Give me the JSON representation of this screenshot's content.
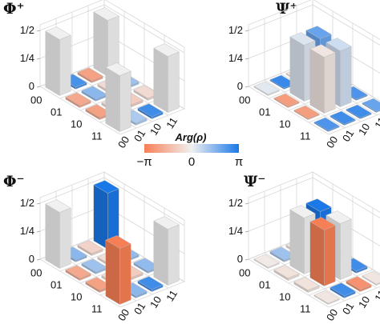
{
  "chart_data": [
    {
      "type": "bar3d",
      "title": "Φ⁺",
      "row_labels": [
        "00",
        "01",
        "10",
        "11"
      ],
      "col_labels": [
        "00",
        "01",
        "10",
        "11"
      ],
      "z_ticks": [
        "0",
        "1/4",
        "1/2"
      ],
      "zlim": [
        0,
        0.55
      ],
      "magnitude": [
        [
          0.5,
          0.02,
          0.02,
          0.5
        ],
        [
          0.02,
          0.02,
          0.02,
          0.02
        ],
        [
          0.02,
          0.02,
          0.02,
          0.02
        ],
        [
          0.5,
          0.02,
          0.02,
          0.5
        ]
      ],
      "phase": [
        [
          0,
          2.5,
          -2.2,
          0
        ],
        [
          -2.0,
          1.5,
          -0.6,
          1.2
        ],
        [
          -2.2,
          -0.6,
          -1.0,
          -0.6
        ],
        [
          0,
          1.0,
          2.6,
          0
        ]
      ]
    },
    {
      "type": "bar3d",
      "title": "Ψ⁺",
      "row_labels": [
        "00",
        "01",
        "10",
        "11"
      ],
      "col_labels": [
        "00",
        "01",
        "10",
        "11"
      ],
      "z_ticks": [
        "0",
        "1/4",
        "1/2"
      ],
      "zlim": [
        0,
        0.55
      ],
      "magnitude": [
        [
          0.01,
          0.01,
          0.01,
          0.01
        ],
        [
          0.01,
          0.5,
          0.5,
          0.01
        ],
        [
          0.01,
          0.5,
          0.5,
          0.01
        ],
        [
          0.01,
          0.01,
          0.01,
          0.01
        ]
      ],
      "phase": [
        [
          0.2,
          2.7,
          -0.4,
          -0.4
        ],
        [
          -2.3,
          0.3,
          2.0,
          -0.6
        ],
        [
          -2.3,
          -0.3,
          0.5,
          2.4
        ],
        [
          2.4,
          2.6,
          2.6,
          2.0
        ]
      ]
    },
    {
      "type": "bar3d",
      "title": "Φ⁻",
      "row_labels": [
        "00",
        "01",
        "10",
        "11"
      ],
      "col_labels": [
        "00",
        "01",
        "10",
        "11"
      ],
      "z_ticks": [
        "0",
        "1/4",
        "1/2"
      ],
      "zlim": [
        0,
        0.55
      ],
      "magnitude": [
        [
          0.5,
          0.02,
          0.02,
          0.5
        ],
        [
          0.02,
          0.02,
          0.02,
          0.02
        ],
        [
          0.02,
          0.02,
          0.02,
          0.02
        ],
        [
          0.5,
          0.02,
          0.02,
          0.5
        ]
      ],
      "phase": [
        [
          0,
          1.5,
          -0.8,
          3.14
        ],
        [
          -2.0,
          1.2,
          -0.5,
          1.4
        ],
        [
          -2.2,
          -0.6,
          -1.0,
          1.4
        ],
        [
          -3.14,
          1.5,
          2.6,
          0
        ]
      ]
    },
    {
      "type": "bar3d",
      "title": "Ψ⁻",
      "row_labels": [
        "00",
        "01",
        "10",
        "11"
      ],
      "col_labels": [
        "00",
        "01",
        "10",
        "11"
      ],
      "z_ticks": [
        "0",
        "1/4",
        "1/2"
      ],
      "zlim": [
        0,
        0.55
      ],
      "magnitude": [
        [
          0.01,
          0.02,
          0.02,
          0.01
        ],
        [
          0.02,
          0.5,
          0.5,
          0.02
        ],
        [
          0.02,
          0.5,
          0.5,
          0.02
        ],
        [
          0.01,
          0.02,
          0.02,
          0.01
        ]
      ],
      "phase": [
        [
          -0.2,
          1.2,
          -0.3,
          0.3
        ],
        [
          -0.4,
          0,
          3.14,
          2.0
        ],
        [
          -0.4,
          -3.14,
          0,
          2.6
        ],
        [
          -0.3,
          2.6,
          -2.6,
          -0.3
        ]
      ]
    }
  ],
  "colorbar": {
    "label": "Arg(ρ)",
    "tick_labels": [
      "−π",
      "0",
      "π"
    ],
    "range": [
      -3.1416,
      3.1416
    ],
    "colors": {
      "neg": "#f77f55",
      "mid": "#f0f0f0",
      "pos": "#1a78e8"
    }
  }
}
